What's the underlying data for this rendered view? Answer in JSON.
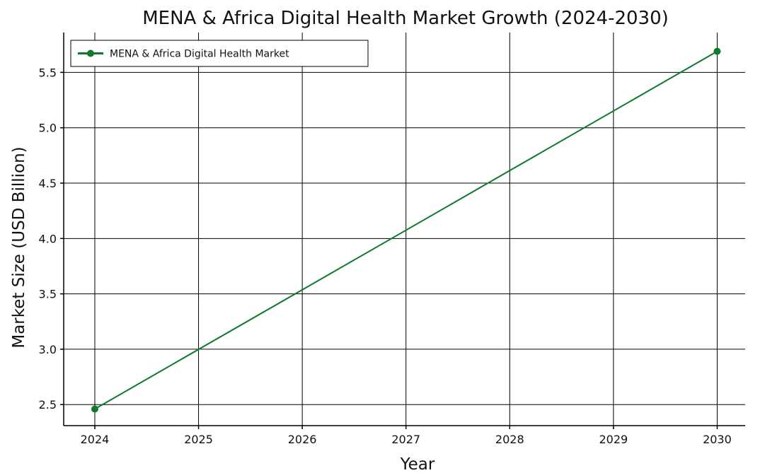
{
  "chart_data": {
    "type": "line",
    "title": "MENA & Africa Digital Health Market Growth (2024-2030)",
    "xlabel": "Year",
    "ylabel": "Market Size (USD Billion)",
    "x_ticks": [
      "2024",
      "2025",
      "2026",
      "2027",
      "2028",
      "2029",
      "2030"
    ],
    "y_ticks": [
      "2.5",
      "3.0",
      "3.5",
      "4.0",
      "4.5",
      "5.0",
      "5.5"
    ],
    "xlim": [
      2023.7,
      2030.27
    ],
    "ylim": [
      2.31,
      5.86
    ],
    "grid": true,
    "legend_position": "top-left",
    "series": [
      {
        "name": "MENA & Africa Digital Health Market",
        "color": "#0b7a2e",
        "points": [
          {
            "x": 2024,
            "y": 2.46
          },
          {
            "x": 2030,
            "y": 5.69
          }
        ]
      }
    ]
  }
}
